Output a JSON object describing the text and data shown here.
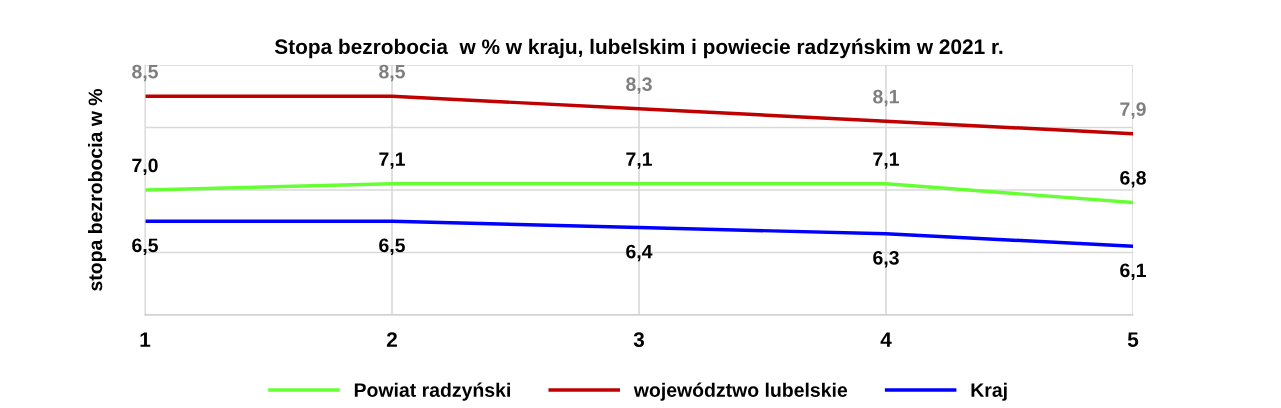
{
  "chart_data": {
    "type": "line",
    "title": "Stopa bezrobocia  w % w kraju, lubelskim i powiecie radzyńskim w 2021 r.",
    "ylabel": "stopa bezrobocia w %",
    "x": [
      1,
      2,
      3,
      4,
      5
    ],
    "xlim": [
      1,
      5
    ],
    "xticks": [
      1,
      2,
      3,
      4,
      5
    ],
    "ylim": [
      5,
      9
    ],
    "yticks": [
      {
        "value": 5,
        "label": null
      },
      {
        "value": 6,
        "label": null
      },
      {
        "value": 7,
        "label": null
      },
      {
        "value": 8,
        "label": null
      },
      {
        "value": 9,
        "label": null
      }
    ],
    "tick_labels": "x",
    "grid": true,
    "legend": "bottom",
    "marker": "none",
    "line_style": "solid",
    "series": [
      {
        "name": "Powiat radzyński",
        "color": "#66ff33",
        "values": [
          7.0,
          7.1,
          7.1,
          7.1,
          6.8
        ],
        "value_labels": [
          "7,0",
          "7,1",
          "7,1",
          "7,1",
          "6,8"
        ]
      },
      {
        "name": "województwo lubelskie",
        "color": "#c00000",
        "values": [
          8.5,
          8.5,
          8.3,
          8.1,
          7.9
        ],
        "value_labels": [
          "8,5",
          "8,5",
          "8,3",
          "8,1",
          "7,9"
        ]
      },
      {
        "name": "Kraj",
        "color": "#0000ff",
        "values": [
          6.5,
          6.5,
          6.4,
          6.3,
          6.1
        ],
        "value_labels": [
          "6,5",
          "6,5",
          "6,4",
          "6,3",
          "6,1"
        ]
      }
    ]
  }
}
